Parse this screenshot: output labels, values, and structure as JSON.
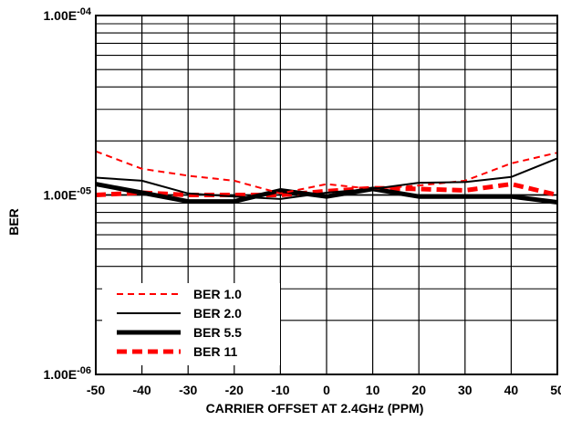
{
  "chart_data": {
    "type": "line",
    "xlabel": "CARRIER OFFSET AT 2.4GHz (PPM)",
    "ylabel": "BER",
    "xlim": [
      -50,
      50
    ],
    "ylim": [
      1e-06,
      0.0001
    ],
    "yscale": "log",
    "grid": true,
    "legend_position": "bottom-left",
    "x": [
      -50,
      -40,
      -30,
      -20,
      -10,
      0,
      10,
      20,
      30,
      40,
      50
    ],
    "x_ticks": [
      "-50",
      "-40",
      "-30",
      "-20",
      "-10",
      "0",
      "10",
      "20",
      "30",
      "40",
      "50"
    ],
    "y_ticks": [
      {
        "base": "1.00E",
        "exp": "-04",
        "value": 0.0001
      },
      {
        "base": "1.00E",
        "exp": "-05",
        "value": 1e-05
      },
      {
        "base": "1.00E",
        "exp": "-06",
        "value": 1e-06
      }
    ],
    "series": [
      {
        "name": "BER 1.0",
        "color": "#ff0000",
        "style": "dashed",
        "weight": "thin",
        "values": [
          1.75e-05,
          1.4e-05,
          1.28e-05,
          1.2e-05,
          1.02e-05,
          1.15e-05,
          1.08e-05,
          1.13e-05,
          1.2e-05,
          1.5e-05,
          1.72e-05
        ]
      },
      {
        "name": "BER 2.0",
        "color": "#000000",
        "style": "solid",
        "weight": "thin",
        "values": [
          1.25e-05,
          1.2e-05,
          1.02e-05,
          9.8e-06,
          9.5e-06,
          1.03e-05,
          1.08e-05,
          1.17e-05,
          1.18e-05,
          1.26e-05,
          1.6e-05
        ]
      },
      {
        "name": "BER 5.5",
        "color": "#000000",
        "style": "solid",
        "weight": "thick",
        "values": [
          1.15e-05,
          1.03e-05,
          9.2e-06,
          9.2e-06,
          1.06e-05,
          9.8e-06,
          1.08e-05,
          9.8e-06,
          9.8e-06,
          9.8e-06,
          9.1e-06
        ]
      },
      {
        "name": "BER 11",
        "color": "#ff0000",
        "style": "dashed",
        "weight": "thick",
        "values": [
          1e-05,
          1.03e-05,
          1e-05,
          1e-05,
          1e-05,
          1.05e-05,
          1.09e-05,
          1.08e-05,
          1.06e-05,
          1.15e-05,
          1e-05
        ]
      }
    ]
  }
}
